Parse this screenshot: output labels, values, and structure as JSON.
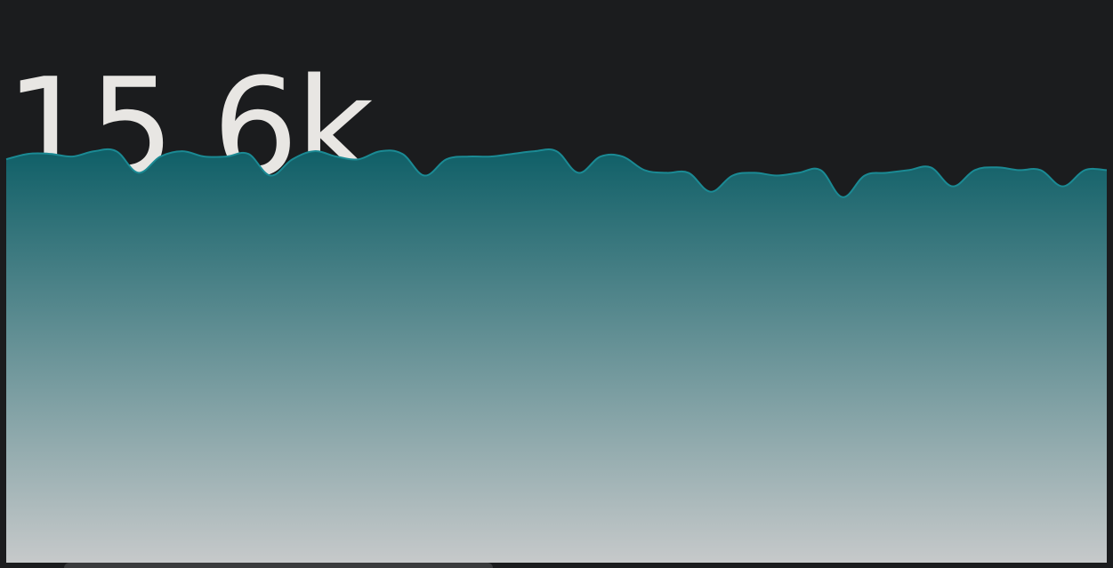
{
  "stat": {
    "value": "15.6k"
  },
  "colors": {
    "background": "#1b1c1e",
    "text": "#e8e6e3",
    "line": "#1b8a94",
    "fill_top": "#0f5f67",
    "fill_bottom": "#c6c9ca"
  },
  "chart_data": {
    "type": "area",
    "values": [
      14.9,
      15.1,
      15.1,
      15.0,
      15.2,
      15.2,
      14.4,
      15.0,
      15.2,
      15.0,
      15.0,
      15.1,
      14.3,
      14.9,
      15.2,
      15.0,
      14.9,
      15.2,
      15.1,
      14.3,
      14.9,
      15.0,
      15.0,
      15.1,
      15.2,
      15.2,
      14.4,
      15.0,
      15.0,
      14.5,
      14.4,
      14.4,
      13.7,
      14.3,
      14.4,
      14.3,
      14.4,
      14.5,
      13.5,
      14.3,
      14.4,
      14.5,
      14.6,
      13.9,
      14.5,
      14.6,
      14.5,
      14.5,
      13.9,
      14.5,
      14.5
    ],
    "ylim": [
      0,
      17.5
    ],
    "grid": false,
    "legend": "none"
  }
}
